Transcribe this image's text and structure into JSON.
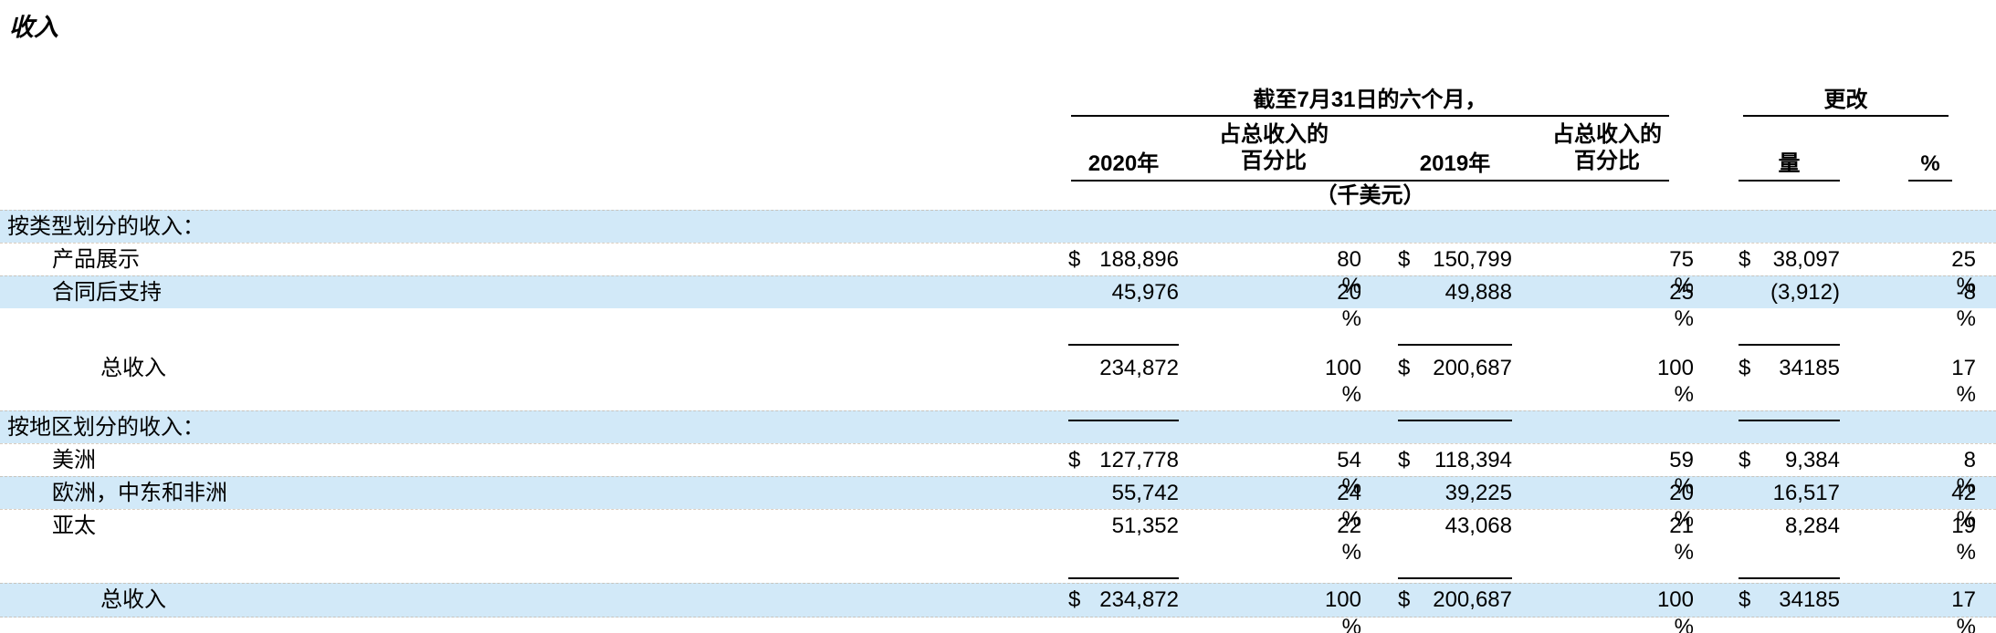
{
  "page": {
    "title": "收入"
  },
  "colors": {
    "row_shade": "#d2e9f8",
    "rule": "#000000",
    "dashed_separator": "#beA58c"
  },
  "table": {
    "percent_sign": "%",
    "header": {
      "period_group": "截至7月31日的六个月，",
      "change_group": "更改",
      "col_2020": "2020年",
      "pct_of_revenue_line1": "占总收入的",
      "pct_of_revenue_line2": "百分比",
      "col_2019": "2019年",
      "col_amount": "量",
      "col_percent": "%",
      "units_note": "（千美元）"
    },
    "rows": [
      {
        "type": "section",
        "label": "按类型划分的收入：",
        "indent": 0,
        "shaded": true,
        "usd_2020": "",
        "amt_2020": "",
        "pct_2020": "",
        "usd_2019": "",
        "amt_2019": "",
        "pct_2019": "",
        "usd_chg": "",
        "amt_chg": "",
        "pct_chg": "",
        "underline": ""
      },
      {
        "type": "item",
        "label": "产品展示",
        "indent": 1,
        "shaded": false,
        "usd_2020": "$",
        "amt_2020": "188,896",
        "pct_2020": "80",
        "usd_2019": "$",
        "amt_2019": "150,799",
        "pct_2019": "75",
        "usd_chg": "$",
        "amt_chg": "38,097",
        "pct_chg": "25",
        "underline": ""
      },
      {
        "type": "item",
        "label": "合同后支持",
        "indent": 1,
        "shaded": true,
        "usd_2020": "",
        "amt_2020": "45,976",
        "pct_2020": "20",
        "usd_2019": "",
        "amt_2019": "49,888",
        "pct_2019": "25",
        "usd_chg": "",
        "amt_chg": "(3,912)",
        "pct_chg": "-8",
        "underline": "single"
      },
      {
        "type": "spacer"
      },
      {
        "type": "total",
        "label": "总收入",
        "indent": 2,
        "shaded": false,
        "usd_2020": "",
        "amt_2020": "234,872",
        "pct_2020": "100",
        "usd_2019": "$",
        "amt_2019": "200,687",
        "pct_2019": "100",
        "usd_chg": "$",
        "amt_chg": "34185",
        "pct_chg": "17",
        "underline": "single"
      },
      {
        "type": "spacer"
      },
      {
        "type": "section",
        "label": "按地区划分的收入：",
        "indent": 0,
        "shaded": true,
        "usd_2020": "",
        "amt_2020": "",
        "pct_2020": "",
        "usd_2019": "",
        "amt_2019": "",
        "pct_2019": "",
        "usd_chg": "",
        "amt_chg": "",
        "pct_chg": "",
        "underline": ""
      },
      {
        "type": "item",
        "label": "美洲",
        "indent": 1,
        "shaded": false,
        "usd_2020": "$",
        "amt_2020": "127,778",
        "pct_2020": "54",
        "usd_2019": "$",
        "amt_2019": "118,394",
        "pct_2019": "59",
        "usd_chg": "$",
        "amt_chg": "9,384",
        "pct_chg": "8",
        "underline": ""
      },
      {
        "type": "item",
        "label": "欧洲，中东和非洲",
        "indent": 1,
        "shaded": true,
        "usd_2020": "",
        "amt_2020": "55,742",
        "pct_2020": "24",
        "usd_2019": "",
        "amt_2019": "39,225",
        "pct_2019": "20",
        "usd_chg": "",
        "amt_chg": "16,517",
        "pct_chg": "42",
        "underline": ""
      },
      {
        "type": "item",
        "label": "亚太",
        "indent": 1,
        "shaded": false,
        "usd_2020": "",
        "amt_2020": "51,352",
        "pct_2020": "22",
        "usd_2019": "",
        "amt_2019": "43,068",
        "pct_2019": "21",
        "usd_chg": "",
        "amt_chg": "8,284",
        "pct_chg": "19",
        "underline": "single"
      },
      {
        "type": "spacer"
      },
      {
        "type": "total",
        "label": "总收入",
        "indent": 2,
        "shaded": true,
        "usd_2020": "$",
        "amt_2020": "234,872",
        "pct_2020": "100",
        "usd_2019": "$",
        "amt_2019": "200,687",
        "pct_2019": "100",
        "usd_chg": "$",
        "amt_chg": "34185",
        "pct_chg": "17",
        "underline": "double"
      }
    ]
  }
}
